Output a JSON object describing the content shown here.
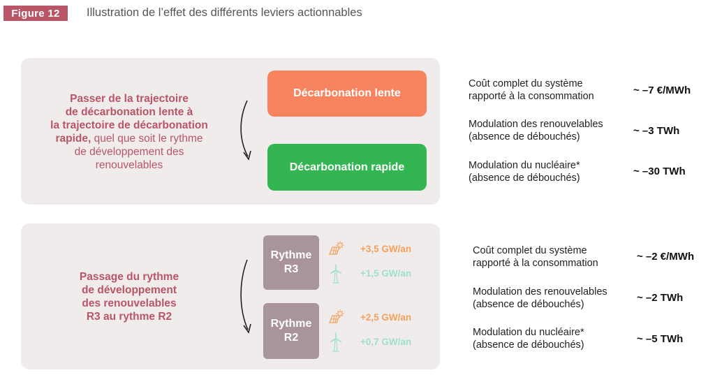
{
  "figure": {
    "label": "Figure 12",
    "title": "Illustration de l’effet des différents leviers actionnables"
  },
  "lever1": {
    "text_bold_1": "Passer de la trajectoire",
    "text_bold_2": "de décarbonation lente à",
    "text_bold_3": "la trajectoire de décarbonation",
    "text_bold_4": "rapide,",
    "text_normal_4": " quel que soit le rythme",
    "text_normal_5": "de développement des",
    "text_normal_6": "renouvelables",
    "from_label": "Décarbonation lente",
    "to_label": "Décarbonation rapide",
    "colors": {
      "from": "#f7845f",
      "to": "#33b552"
    },
    "metrics": [
      {
        "label_line1": "Coût complet du système",
        "label_line2": "rapporté à la consommation",
        "value": "~ –7 €/MWh"
      },
      {
        "label_line1": "Modulation des renouvelables",
        "label_line2": "(absence de débouchés)",
        "value": "~ –3 TWh"
      },
      {
        "label_line1": "Modulation du nucléaire*",
        "label_line2": "(absence de débouchés)",
        "value": "~ –30 TWh"
      }
    ]
  },
  "lever2": {
    "text_line1": "Passage du rythme",
    "text_line2": "de développement",
    "text_line3": "des renouvelables",
    "text_line4": "R3 au rythme R2",
    "r3": {
      "line1": "Rythme",
      "line2": "R3",
      "solar_icon": "solar-panel-icon",
      "solar": "+3,5 GW/an",
      "wind_icon": "wind-turbine-icon",
      "wind": "+1,5 GW/an"
    },
    "r2": {
      "line1": "Rythme",
      "line2": "R2",
      "solar_icon": "solar-panel-icon",
      "solar": "+2,5 GW/an",
      "wind_icon": "wind-turbine-icon",
      "wind": "+0,7 GW/an"
    },
    "metrics": [
      {
        "label_line1": "Coût complet du système",
        "label_line2": "rapporté à la consommation",
        "value": "~ –2 €/MWh"
      },
      {
        "label_line1": "Modulation des renouvelables",
        "label_line2": "(absence de débouchés)",
        "value": "~ –2 TWh"
      },
      {
        "label_line1": "Modulation du nucléaire*",
        "label_line2": "(absence de débouchés)",
        "value": "~ –5 TWh"
      }
    ]
  },
  "colors": {
    "accent": "#b85566",
    "panel": "#f1ecec",
    "rythme_box": "#a99499",
    "solar": "#f4a15a",
    "wind": "#9ee0cf"
  }
}
